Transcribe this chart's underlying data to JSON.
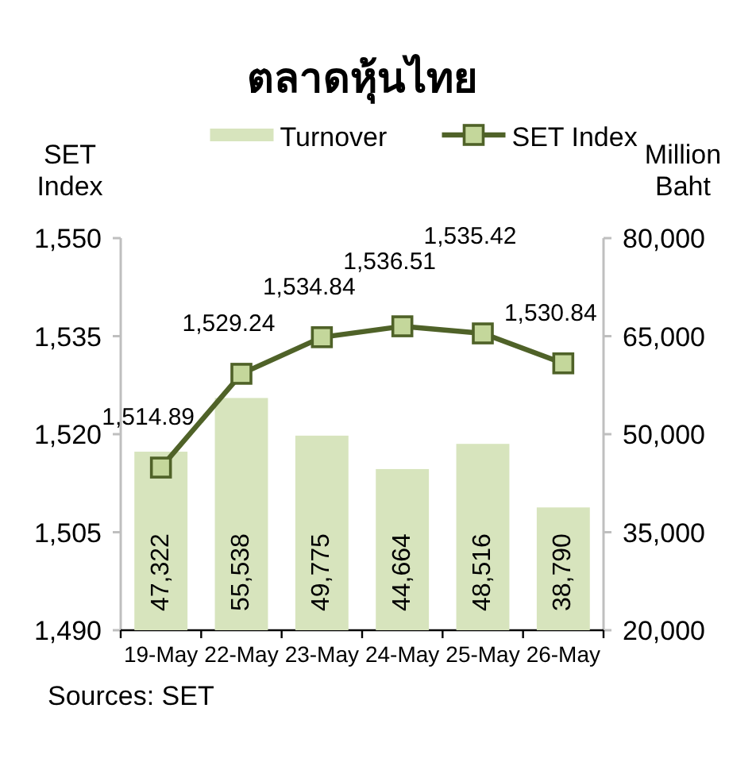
{
  "chart_data": {
    "type": "bar",
    "title": "ตลาดหุ้นไทย",
    "ylabel": "SET Index",
    "y2label": "Million Baht",
    "categories": [
      "19-May",
      "22-May",
      "23-May",
      "24-May",
      "25-May",
      "26-May"
    ],
    "series": [
      {
        "name": "Turnover",
        "axis": "y2",
        "color": "#d7e4bd",
        "values": [
          47322,
          55538,
          49775,
          44664,
          48516,
          38790
        ],
        "value_labels": [
          "47,322",
          "55,538",
          "49,775",
          "44,664",
          "48,516",
          "38,790"
        ]
      },
      {
        "name": "SET Index",
        "type": "line",
        "color": "#4f6228",
        "values": [
          1514.89,
          1529.24,
          1534.84,
          1536.51,
          1535.42,
          1530.84
        ],
        "value_labels": [
          "1,514.89",
          "1,529.24",
          "1,534.84",
          "1,536.51",
          "1,535.42",
          "1,530.84"
        ]
      }
    ],
    "ylim": [
      1490,
      1550
    ],
    "yticks": [
      {
        "value": 1490,
        "label": "1,490"
      },
      {
        "value": 1505,
        "label": "1,505"
      },
      {
        "value": 1520,
        "label": "1,520"
      },
      {
        "value": 1535,
        "label": "1,535"
      },
      {
        "value": 1550,
        "label": "1,550"
      }
    ],
    "y2lim": [
      20000,
      80000
    ],
    "y2ticks": [
      {
        "value": 20000,
        "label": "20,000"
      },
      {
        "value": 35000,
        "label": "35,000"
      },
      {
        "value": 50000,
        "label": "50,000"
      },
      {
        "value": 65000,
        "label": "65,000"
      },
      {
        "value": 80000,
        "label": "80,000"
      }
    ],
    "marker": "square",
    "legend": "top",
    "annotations": [
      "Sources: SET"
    ]
  }
}
